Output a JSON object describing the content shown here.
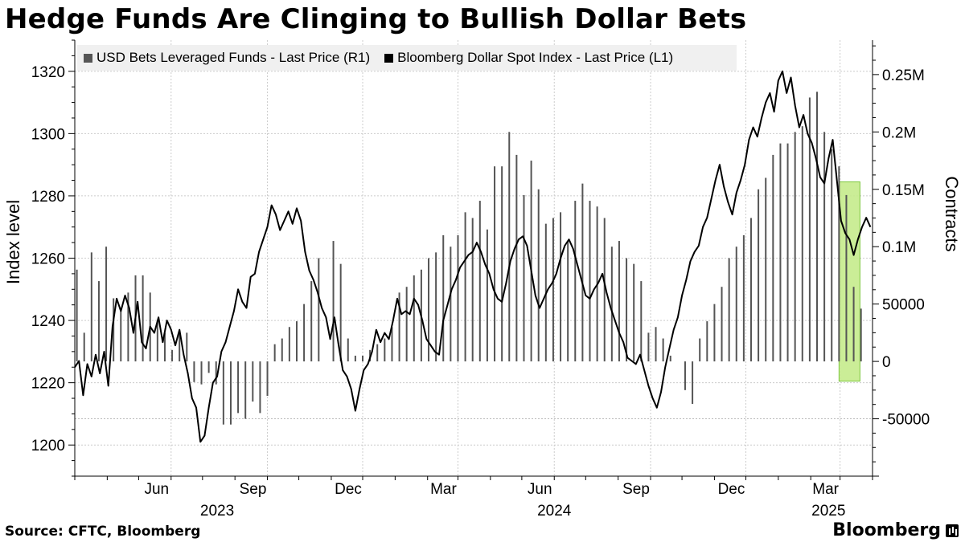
{
  "title": "Hedge Funds Are Clinging to Bullish Dollar Bets",
  "source": "Source: CFTC, Bloomberg",
  "brand": "Bloomberg",
  "colors": {
    "index_line": "#000000",
    "bars": "#555555",
    "highlight_fill": "#c6ec8c",
    "highlight_stroke": "#6fc22a",
    "grid": "#cccccc"
  },
  "chart_data": {
    "type": "line+bar",
    "legend": [
      {
        "name": "USD Bets Leveraged Funds - Last Price (R1)",
        "color": "#555555"
      },
      {
        "name": "Bloomberg Dollar Spot Index - Last Price (L1)",
        "color": "#000000"
      }
    ],
    "y_left": {
      "label": "Index level",
      "range": [
        1190,
        1330
      ],
      "ticks": [
        "1200",
        "1220",
        "1240",
        "1260",
        "1280",
        "1300",
        "1320"
      ]
    },
    "y_right": {
      "label": "Contracts",
      "range": [
        -100000,
        280000
      ],
      "ticks": [
        {
          "value": -50000,
          "label": "-50000"
        },
        {
          "value": 0,
          "label": "0"
        },
        {
          "value": 50000,
          "label": "50000"
        },
        {
          "value": 100000,
          "label": "0.1M"
        },
        {
          "value": 150000,
          "label": "0.15M"
        },
        {
          "value": 200000,
          "label": "0.2M"
        },
        {
          "value": 250000,
          "label": "0.25M"
        }
      ]
    },
    "x_axis": {
      "range": [
        "2023-03-01",
        "2025-04-01"
      ],
      "month_ticks": [
        {
          "date": "2023-06-01",
          "label": "Jun"
        },
        {
          "date": "2023-09-01",
          "label": "Sep"
        },
        {
          "date": "2023-12-01",
          "label": "Dec"
        },
        {
          "date": "2024-03-01",
          "label": "Mar"
        },
        {
          "date": "2024-06-01",
          "label": "Jun"
        },
        {
          "date": "2024-09-01",
          "label": "Sep"
        },
        {
          "date": "2024-12-01",
          "label": "Dec"
        },
        {
          "date": "2025-03-01",
          "label": "Mar"
        }
      ],
      "year_labels": [
        {
          "date": "2023-07-15",
          "label": "2023"
        },
        {
          "date": "2024-06-01",
          "label": "2024"
        },
        {
          "date": "2025-02-18",
          "label": "2025"
        }
      ]
    },
    "highlight": {
      "x_start": "2025-02-28",
      "x_end": "2025-03-20",
      "y_top": 1284.5,
      "y_bottom": 1220.5
    },
    "bloomberg_dollar_index": [
      [
        "2023-03-01",
        1225
      ],
      [
        "2023-03-05",
        1227
      ],
      [
        "2023-03-09",
        1216
      ],
      [
        "2023-03-13",
        1226
      ],
      [
        "2023-03-17",
        1222
      ],
      [
        "2023-03-21",
        1229
      ],
      [
        "2023-03-25",
        1223
      ],
      [
        "2023-03-29",
        1230
      ],
      [
        "2023-04-02",
        1219
      ],
      [
        "2023-04-06",
        1238
      ],
      [
        "2023-04-10",
        1247
      ],
      [
        "2023-04-14",
        1243
      ],
      [
        "2023-04-18",
        1248
      ],
      [
        "2023-04-22",
        1244
      ],
      [
        "2023-04-26",
        1236
      ],
      [
        "2023-04-30",
        1246
      ],
      [
        "2023-05-04",
        1233
      ],
      [
        "2023-05-08",
        1231
      ],
      [
        "2023-05-12",
        1238
      ],
      [
        "2023-05-16",
        1236
      ],
      [
        "2023-05-20",
        1241
      ],
      [
        "2023-05-24",
        1233
      ],
      [
        "2023-05-28",
        1240
      ],
      [
        "2023-06-01",
        1237
      ],
      [
        "2023-06-05",
        1232
      ],
      [
        "2023-06-09",
        1237
      ],
      [
        "2023-06-13",
        1229
      ],
      [
        "2023-06-17",
        1223
      ],
      [
        "2023-06-21",
        1215
      ],
      [
        "2023-06-25",
        1212
      ],
      [
        "2023-06-29",
        1201
      ],
      [
        "2023-07-03",
        1203
      ],
      [
        "2023-07-07",
        1212
      ],
      [
        "2023-07-11",
        1220
      ],
      [
        "2023-07-15",
        1222
      ],
      [
        "2023-07-19",
        1230
      ],
      [
        "2023-07-23",
        1233
      ],
      [
        "2023-07-27",
        1238
      ],
      [
        "2023-07-31",
        1243
      ],
      [
        "2023-08-04",
        1250
      ],
      [
        "2023-08-08",
        1246
      ],
      [
        "2023-08-12",
        1244
      ],
      [
        "2023-08-16",
        1254
      ],
      [
        "2023-08-20",
        1255
      ],
      [
        "2023-08-24",
        1262
      ],
      [
        "2023-08-28",
        1266
      ],
      [
        "2023-09-01",
        1270
      ],
      [
        "2023-09-05",
        1277
      ],
      [
        "2023-09-09",
        1274
      ],
      [
        "2023-09-13",
        1269
      ],
      [
        "2023-09-17",
        1272
      ],
      [
        "2023-09-21",
        1275
      ],
      [
        "2023-09-25",
        1271
      ],
      [
        "2023-09-29",
        1276
      ],
      [
        "2023-10-03",
        1272
      ],
      [
        "2023-10-07",
        1262
      ],
      [
        "2023-10-11",
        1256
      ],
      [
        "2023-10-15",
        1253
      ],
      [
        "2023-10-19",
        1249
      ],
      [
        "2023-10-23",
        1244
      ],
      [
        "2023-10-27",
        1241
      ],
      [
        "2023-10-31",
        1234
      ],
      [
        "2023-11-04",
        1241
      ],
      [
        "2023-11-08",
        1232
      ],
      [
        "2023-11-12",
        1224
      ],
      [
        "2023-11-16",
        1222
      ],
      [
        "2023-11-20",
        1218
      ],
      [
        "2023-11-24",
        1211
      ],
      [
        "2023-11-28",
        1218
      ],
      [
        "2023-12-02",
        1224
      ],
      [
        "2023-12-06",
        1226
      ],
      [
        "2023-12-10",
        1230
      ],
      [
        "2023-12-14",
        1237
      ],
      [
        "2023-12-18",
        1233
      ],
      [
        "2023-12-22",
        1236
      ],
      [
        "2023-12-26",
        1234
      ],
      [
        "2023-12-30",
        1240
      ],
      [
        "2024-01-03",
        1247
      ],
      [
        "2024-01-07",
        1242
      ],
      [
        "2024-01-11",
        1243
      ],
      [
        "2024-01-15",
        1242
      ],
      [
        "2024-01-19",
        1247
      ],
      [
        "2024-01-23",
        1245
      ],
      [
        "2024-01-27",
        1240
      ],
      [
        "2024-01-31",
        1234
      ],
      [
        "2024-02-04",
        1232
      ],
      [
        "2024-02-08",
        1230
      ],
      [
        "2024-02-12",
        1229
      ],
      [
        "2024-02-16",
        1240
      ],
      [
        "2024-02-20",
        1245
      ],
      [
        "2024-02-24",
        1250
      ],
      [
        "2024-02-28",
        1253
      ],
      [
        "2024-03-03",
        1257
      ],
      [
        "2024-03-07",
        1259
      ],
      [
        "2024-03-11",
        1261
      ],
      [
        "2024-03-15",
        1262
      ],
      [
        "2024-03-19",
        1265
      ],
      [
        "2024-03-23",
        1262
      ],
      [
        "2024-03-27",
        1258
      ],
      [
        "2024-03-31",
        1255
      ],
      [
        "2024-04-04",
        1250
      ],
      [
        "2024-04-08",
        1247
      ],
      [
        "2024-04-12",
        1246
      ],
      [
        "2024-04-16",
        1252
      ],
      [
        "2024-04-20",
        1259
      ],
      [
        "2024-04-24",
        1263
      ],
      [
        "2024-04-28",
        1266
      ],
      [
        "2024-05-02",
        1267
      ],
      [
        "2024-05-06",
        1264
      ],
      [
        "2024-05-10",
        1256
      ],
      [
        "2024-05-14",
        1248
      ],
      [
        "2024-05-18",
        1244
      ],
      [
        "2024-05-22",
        1247
      ],
      [
        "2024-05-26",
        1250
      ],
      [
        "2024-05-30",
        1252
      ],
      [
        "2024-06-03",
        1255
      ],
      [
        "2024-06-07",
        1260
      ],
      [
        "2024-06-11",
        1264
      ],
      [
        "2024-06-15",
        1266
      ],
      [
        "2024-06-19",
        1263
      ],
      [
        "2024-06-23",
        1258
      ],
      [
        "2024-06-27",
        1253
      ],
      [
        "2024-07-01",
        1248
      ],
      [
        "2024-07-05",
        1247
      ],
      [
        "2024-07-09",
        1250
      ],
      [
        "2024-07-13",
        1252
      ],
      [
        "2024-07-17",
        1255
      ],
      [
        "2024-07-21",
        1249
      ],
      [
        "2024-07-25",
        1244
      ],
      [
        "2024-07-29",
        1240
      ],
      [
        "2024-08-02",
        1236
      ],
      [
        "2024-08-06",
        1233
      ],
      [
        "2024-08-10",
        1228
      ],
      [
        "2024-08-14",
        1227
      ],
      [
        "2024-08-18",
        1226
      ],
      [
        "2024-08-22",
        1229
      ],
      [
        "2024-08-26",
        1224
      ],
      [
        "2024-08-30",
        1219
      ],
      [
        "2024-09-03",
        1215
      ],
      [
        "2024-09-07",
        1212
      ],
      [
        "2024-09-11",
        1217
      ],
      [
        "2024-09-15",
        1225
      ],
      [
        "2024-09-19",
        1231
      ],
      [
        "2024-09-23",
        1237
      ],
      [
        "2024-09-27",
        1241
      ],
      [
        "2024-10-01",
        1248
      ],
      [
        "2024-10-05",
        1253
      ],
      [
        "2024-10-09",
        1259
      ],
      [
        "2024-10-13",
        1262
      ],
      [
        "2024-10-17",
        1264
      ],
      [
        "2024-10-21",
        1270
      ],
      [
        "2024-10-25",
        1273
      ],
      [
        "2024-10-29",
        1279
      ],
      [
        "2024-11-02",
        1285
      ],
      [
        "2024-11-06",
        1290
      ],
      [
        "2024-11-10",
        1283
      ],
      [
        "2024-11-14",
        1278
      ],
      [
        "2024-11-18",
        1274
      ],
      [
        "2024-11-22",
        1281
      ],
      [
        "2024-11-26",
        1285
      ],
      [
        "2024-11-30",
        1290
      ],
      [
        "2024-12-04",
        1298
      ],
      [
        "2024-12-08",
        1302
      ],
      [
        "2024-12-12",
        1299
      ],
      [
        "2024-12-16",
        1305
      ],
      [
        "2024-12-20",
        1310
      ],
      [
        "2024-12-24",
        1313
      ],
      [
        "2024-12-28",
        1307
      ],
      [
        "2025-01-01",
        1317
      ],
      [
        "2025-01-05",
        1320
      ],
      [
        "2025-01-09",
        1313
      ],
      [
        "2025-01-13",
        1318
      ],
      [
        "2025-01-17",
        1309
      ],
      [
        "2025-01-21",
        1302
      ],
      [
        "2025-01-25",
        1306
      ],
      [
        "2025-01-29",
        1300
      ],
      [
        "2025-02-02",
        1297
      ],
      [
        "2025-02-06",
        1292
      ],
      [
        "2025-02-10",
        1286
      ],
      [
        "2025-02-14",
        1284
      ],
      [
        "2025-02-18",
        1292
      ],
      [
        "2025-02-22",
        1298
      ],
      [
        "2025-02-26",
        1285
      ],
      [
        "2025-03-02",
        1272
      ],
      [
        "2025-03-06",
        1268
      ],
      [
        "2025-03-10",
        1266
      ],
      [
        "2025-03-14",
        1261
      ],
      [
        "2025-03-18",
        1266
      ],
      [
        "2025-03-22",
        1270
      ],
      [
        "2025-03-26",
        1273
      ],
      [
        "2025-03-30",
        1270
      ]
    ],
    "usd_bets_leveraged_funds": [
      [
        "2023-03-03",
        80000
      ],
      [
        "2023-03-10",
        25000
      ],
      [
        "2023-03-17",
        95000
      ],
      [
        "2023-03-24",
        70000
      ],
      [
        "2023-03-31",
        100000
      ],
      [
        "2023-04-07",
        55000
      ],
      [
        "2023-04-14",
        45000
      ],
      [
        "2023-04-21",
        60000
      ],
      [
        "2023-04-28",
        75000
      ],
      [
        "2023-05-05",
        75000
      ],
      [
        "2023-05-12",
        60000
      ],
      [
        "2023-05-19",
        35000
      ],
      [
        "2023-05-26",
        25000
      ],
      [
        "2023-06-02",
        10000
      ],
      [
        "2023-06-09",
        25000
      ],
      [
        "2023-06-16",
        25000
      ],
      [
        "2023-06-23",
        -18000
      ],
      [
        "2023-06-30",
        -20000
      ],
      [
        "2023-07-07",
        -10000
      ],
      [
        "2023-07-14",
        -20000
      ],
      [
        "2023-07-21",
        -55000
      ],
      [
        "2023-07-28",
        -55000
      ],
      [
        "2023-08-04",
        -45000
      ],
      [
        "2023-08-11",
        -50000
      ],
      [
        "2023-08-18",
        -35000
      ],
      [
        "2023-08-25",
        -45000
      ],
      [
        "2023-09-01",
        -30000
      ],
      [
        "2023-09-08",
        15000
      ],
      [
        "2023-09-15",
        20000
      ],
      [
        "2023-09-22",
        30000
      ],
      [
        "2023-09-29",
        35000
      ],
      [
        "2023-10-06",
        50000
      ],
      [
        "2023-10-13",
        70000
      ],
      [
        "2023-10-20",
        90000
      ],
      [
        "2023-11-03",
        105000
      ],
      [
        "2023-11-10",
        85000
      ],
      [
        "2023-11-17",
        20000
      ],
      [
        "2023-11-24",
        5000
      ],
      [
        "2023-12-01",
        5000
      ],
      [
        "2023-12-08",
        10000
      ],
      [
        "2023-12-15",
        15000
      ],
      [
        "2023-12-22",
        20000
      ],
      [
        "2023-12-29",
        30000
      ],
      [
        "2024-01-05",
        60000
      ],
      [
        "2024-01-12",
        65000
      ],
      [
        "2024-01-19",
        75000
      ],
      [
        "2024-01-26",
        80000
      ],
      [
        "2024-02-02",
        90000
      ],
      [
        "2024-02-09",
        95000
      ],
      [
        "2024-02-16",
        110000
      ],
      [
        "2024-02-23",
        100000
      ],
      [
        "2024-03-01",
        110000
      ],
      [
        "2024-03-08",
        130000
      ],
      [
        "2024-03-15",
        125000
      ],
      [
        "2024-03-22",
        140000
      ],
      [
        "2024-03-29",
        115000
      ],
      [
        "2024-04-05",
        170000
      ],
      [
        "2024-04-12",
        170000
      ],
      [
        "2024-04-19",
        200000
      ],
      [
        "2024-04-26",
        180000
      ],
      [
        "2024-05-03",
        145000
      ],
      [
        "2024-05-10",
        175000
      ],
      [
        "2024-05-17",
        150000
      ],
      [
        "2024-05-24",
        120000
      ],
      [
        "2024-05-31",
        125000
      ],
      [
        "2024-06-07",
        130000
      ],
      [
        "2024-06-14",
        105000
      ],
      [
        "2024-06-21",
        140000
      ],
      [
        "2024-06-28",
        155000
      ],
      [
        "2024-07-05",
        140000
      ],
      [
        "2024-07-12",
        135000
      ],
      [
        "2024-07-19",
        125000
      ],
      [
        "2024-07-26",
        100000
      ],
      [
        "2024-08-02",
        105000
      ],
      [
        "2024-08-09",
        90000
      ],
      [
        "2024-08-16",
        85000
      ],
      [
        "2024-08-23",
        70000
      ],
      [
        "2024-08-30",
        25000
      ],
      [
        "2024-09-06",
        30000
      ],
      [
        "2024-09-13",
        20000
      ],
      [
        "2024-09-20",
        5000
      ],
      [
        "2024-09-27",
        0
      ],
      [
        "2024-10-04",
        -25000
      ],
      [
        "2024-10-11",
        -37000
      ],
      [
        "2024-10-18",
        20000
      ],
      [
        "2024-10-25",
        35000
      ],
      [
        "2024-11-01",
        50000
      ],
      [
        "2024-11-08",
        65000
      ],
      [
        "2024-11-15",
        90000
      ],
      [
        "2024-11-22",
        100000
      ],
      [
        "2024-11-29",
        110000
      ],
      [
        "2024-12-06",
        125000
      ],
      [
        "2024-12-13",
        150000
      ],
      [
        "2024-12-20",
        160000
      ],
      [
        "2024-12-27",
        180000
      ],
      [
        "2025-01-03",
        190000
      ],
      [
        "2025-01-10",
        190000
      ],
      [
        "2025-01-17",
        200000
      ],
      [
        "2025-01-24",
        205000
      ],
      [
        "2025-01-31",
        230000
      ],
      [
        "2025-02-07",
        235000
      ],
      [
        "2025-02-14",
        200000
      ],
      [
        "2025-02-21",
        185000
      ],
      [
        "2025-02-28",
        170000
      ],
      [
        "2025-03-07",
        145000
      ],
      [
        "2025-03-14",
        65000
      ],
      [
        "2025-03-21",
        46000
      ]
    ]
  }
}
